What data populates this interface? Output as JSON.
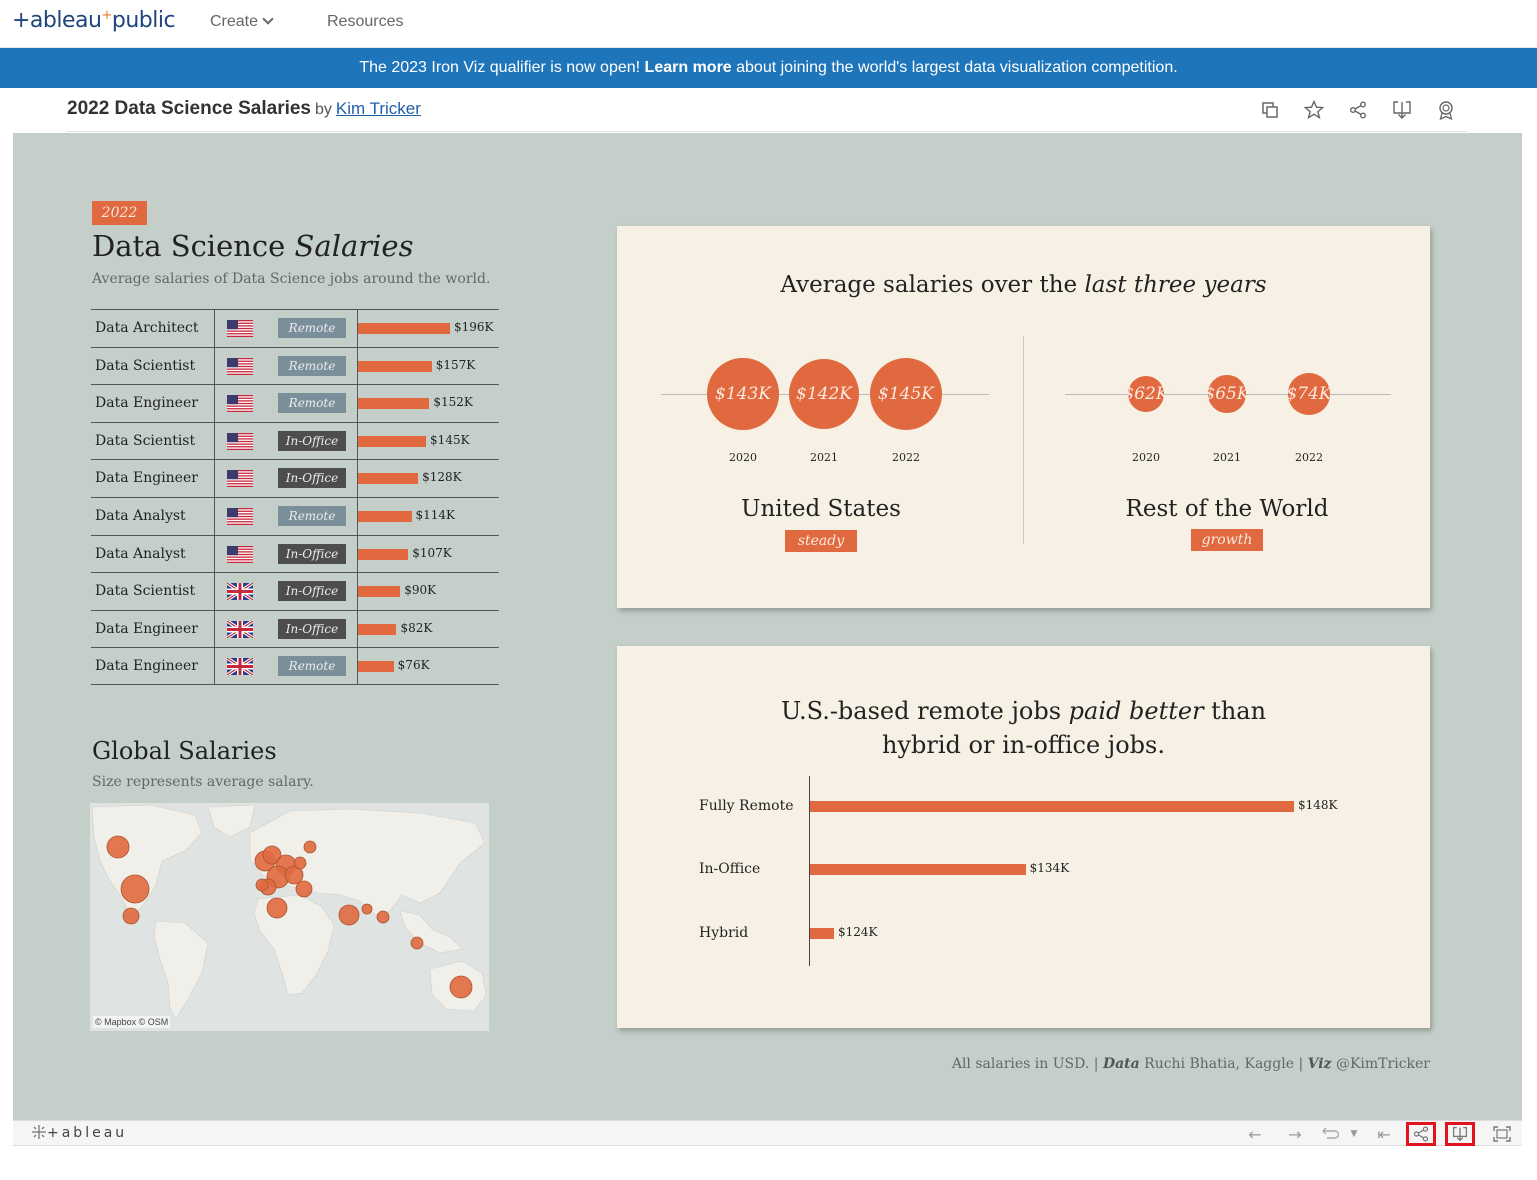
{
  "nav": {
    "logo_a": "+ableau",
    "logo_plus": "+",
    "logo_b": "public",
    "create": "Create",
    "resources": "Resources"
  },
  "banner": {
    "pre": "The 2023 Iron Viz qualifier is now open! ",
    "link": "Learn more",
    "post": " about joining the world's largest data visualization competition."
  },
  "viz": {
    "title": "2022 Data Science Salaries",
    "by": "by",
    "author": "Kim Tricker"
  },
  "dashboard": {
    "year_tag": "2022",
    "title_a": "Data Science ",
    "title_b": "Salaries",
    "subtitle": "Average salaries of Data Science jobs around the world.",
    "jobs": [
      {
        "title": "Data Architect",
        "country": "us",
        "mode": "Remote",
        "value": 196,
        "label": "$196K"
      },
      {
        "title": "Data Scientist",
        "country": "us",
        "mode": "Remote",
        "value": 157,
        "label": "$157K"
      },
      {
        "title": "Data Engineer",
        "country": "us",
        "mode": "Remote",
        "value": 152,
        "label": "$152K"
      },
      {
        "title": "Data Scientist",
        "country": "us",
        "mode": "In-Office",
        "value": 145,
        "label": "$145K"
      },
      {
        "title": "Data Engineer",
        "country": "us",
        "mode": "In-Office",
        "value": 128,
        "label": "$128K"
      },
      {
        "title": "Data Analyst",
        "country": "us",
        "mode": "Remote",
        "value": 114,
        "label": "$114K"
      },
      {
        "title": "Data Analyst",
        "country": "us",
        "mode": "In-Office",
        "value": 107,
        "label": "$107K"
      },
      {
        "title": "Data Scientist",
        "country": "gb",
        "mode": "In-Office",
        "value": 90,
        "label": "$90K"
      },
      {
        "title": "Data Engineer",
        "country": "gb",
        "mode": "In-Office",
        "value": 82,
        "label": "$82K"
      },
      {
        "title": "Data Engineer",
        "country": "gb",
        "mode": "Remote",
        "value": 76,
        "label": "$76K"
      }
    ],
    "global_title": "Global Salaries",
    "global_subtitle": "Size represents average salary.",
    "map_credit": "© Mapbox  © OSM",
    "panel1": {
      "title_a": "Average salaries over the ",
      "title_b": "last three years",
      "us": {
        "name": "United States",
        "tag": "steady",
        "bubbles": [
          {
            "year": "2020",
            "label": "$143K",
            "value": 143
          },
          {
            "year": "2021",
            "label": "$142K",
            "value": 142
          },
          {
            "year": "2022",
            "label": "$145K",
            "value": 145
          }
        ]
      },
      "row": {
        "name": "Rest of the World",
        "tag": "growth",
        "bubbles": [
          {
            "year": "2020",
            "label": "$62K",
            "value": 62
          },
          {
            "year": "2021",
            "label": "$65K",
            "value": 65
          },
          {
            "year": "2022",
            "label": "$74K",
            "value": 74
          }
        ]
      }
    },
    "panel2": {
      "title_line1_a": "U.S.-based remote jobs ",
      "title_line1_b": "paid better",
      "title_line1_c": " than",
      "title_line2": "hybrid or in-office jobs.",
      "bars": [
        {
          "label": "Fully Remote",
          "value": 148,
          "value_label": "$148K"
        },
        {
          "label": "In-Office",
          "value": 134,
          "value_label": "$134K"
        },
        {
          "label": "Hybrid",
          "value": 124,
          "value_label": "$124K"
        }
      ]
    },
    "footer": {
      "usd": "All salaries in USD.",
      "sep": "|",
      "data_label": "Data",
      "data_src": "Ruchi Bhatia, Kaggle",
      "viz_label": "Viz",
      "viz_src": "@KimTricker"
    }
  },
  "bottombar": {
    "logo": "+ableau"
  },
  "colors": {
    "accent": "#e0693f",
    "banner": "#1f75ba",
    "dashboard_bg": "#c4cfc9",
    "panel_bg": "#f6f1e4"
  }
}
